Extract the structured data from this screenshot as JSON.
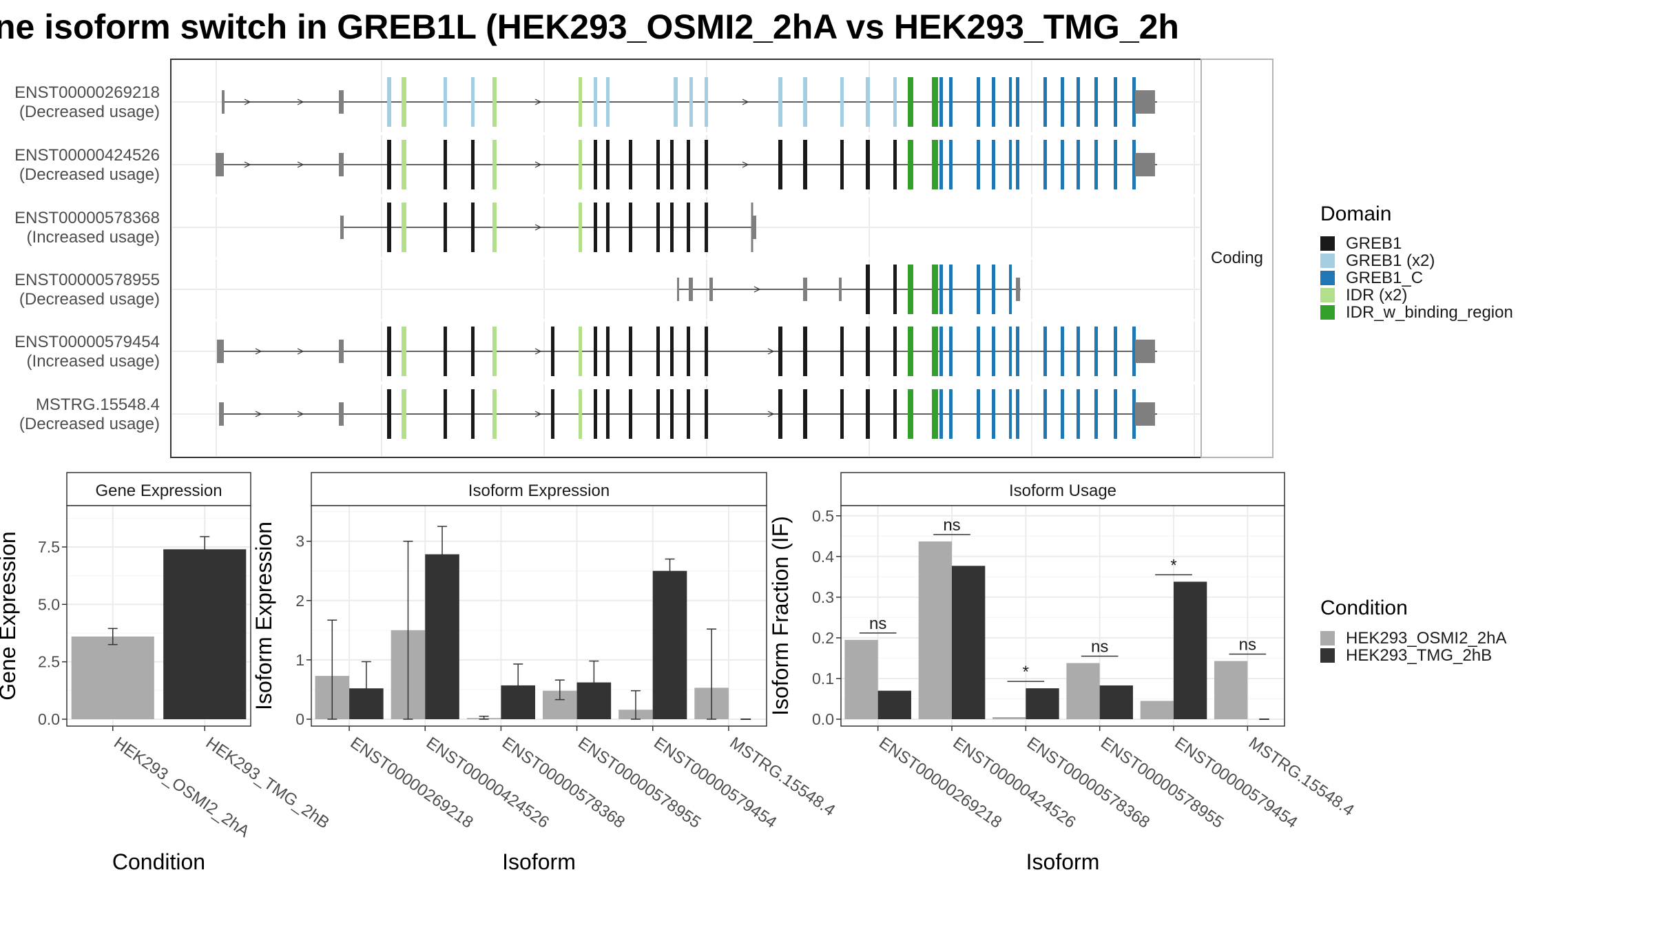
{
  "title": "ne isoform switch in GREB1L (HEK293_OSMI2_2hA vs HEK293_TMG_2h",
  "structure_panel": {
    "strip_label": "Coding",
    "transcripts": [
      {
        "id": "ENST00000269218",
        "usage": "(Decreased usage)",
        "coding": "GREB1 (x2)"
      },
      {
        "id": "ENST00000424526",
        "usage": "(Decreased usage)",
        "coding": "GREB1"
      },
      {
        "id": "ENST00000578368",
        "usage": "(Increased usage)",
        "coding": "GREB1"
      },
      {
        "id": "ENST00000578955",
        "usage": "(Decreased usage)",
        "coding": "GREB1"
      },
      {
        "id": "ENST00000579454",
        "usage": "(Increased usage)",
        "coding": "GREB1"
      },
      {
        "id": "MSTRG.15548.4",
        "usage": "(Decreased usage)",
        "coding": "GREB1"
      }
    ]
  },
  "legend_domain": {
    "title": "Domain",
    "items": [
      {
        "label": "GREB1",
        "color": "#1a1a1a"
      },
      {
        "label": "GREB1 (x2)",
        "color": "#a6cee3"
      },
      {
        "label": "GREB1_C",
        "color": "#1f78b4"
      },
      {
        "label": "IDR (x2)",
        "color": "#b2df8a"
      },
      {
        "label": "IDR_w_binding_region",
        "color": "#33a02c"
      }
    ]
  },
  "legend_condition": {
    "title": "Condition",
    "items": [
      {
        "label": "HEK293_OSMI2_2hA",
        "color": "#ababab"
      },
      {
        "label": "HEK293_TMG_2hB",
        "color": "#333333"
      }
    ]
  },
  "chart_data": [
    {
      "type": "bar",
      "title": "Gene Expression",
      "xlabel": "Condition",
      "ylabel": "Gene Expression",
      "ylim": [
        0,
        9.3
      ],
      "yticks": [
        0.0,
        2.5,
        5.0,
        7.5
      ],
      "ytick_labels": [
        "0.0",
        "2.5",
        "5.0",
        "7.5"
      ],
      "categories": [
        "HEK293_OSMI2_2hA",
        "HEK293_TMG_2hB"
      ],
      "values": [
        3.6,
        7.4
      ],
      "error_low": [
        3.25,
        6.85
      ],
      "error_high": [
        3.95,
        7.95
      ],
      "colors": [
        "#ababab",
        "#333333"
      ],
      "grid": true
    },
    {
      "type": "bar",
      "title": "Isoform Expression",
      "xlabel": "Isoform",
      "ylabel": "Isoform Expression",
      "ylim": [
        0,
        3.6
      ],
      "yticks": [
        0,
        1,
        2,
        3
      ],
      "ytick_labels": [
        "0",
        "1",
        "2",
        "3"
      ],
      "categories": [
        "ENST00000269218",
        "ENST00000424526",
        "ENST00000578368",
        "ENST00000578955",
        "ENST00000579454",
        "MSTRG.15548.4"
      ],
      "series": [
        {
          "name": "HEK293_OSMI2_2hA",
          "color": "#ababab",
          "values": [
            0.73,
            1.5,
            0.02,
            0.48,
            0.16,
            0.53
          ],
          "error_low": [
            0.0,
            0.0,
            0.0,
            0.33,
            0.0,
            0.0
          ],
          "error_high": [
            1.67,
            3.0,
            0.05,
            0.66,
            0.48,
            1.52
          ]
        },
        {
          "name": "HEK293_TMG_2hB",
          "color": "#333333",
          "values": [
            0.52,
            2.78,
            0.57,
            0.62,
            2.5,
            0.0
          ],
          "error_low": [
            0.05,
            2.3,
            0.2,
            0.25,
            2.3,
            0.0
          ],
          "error_high": [
            0.97,
            3.25,
            0.93,
            0.98,
            2.7,
            0.0
          ]
        }
      ],
      "grid": true
    },
    {
      "type": "bar",
      "title": "Isoform Usage",
      "xlabel": "Isoform",
      "ylabel": "Isoform Fraction (IF)",
      "ylim": [
        0,
        0.525
      ],
      "yticks": [
        0.0,
        0.1,
        0.2,
        0.3,
        0.4,
        0.5
      ],
      "ytick_labels": [
        "0.0",
        "0.1",
        "0.2",
        "0.3",
        "0.4",
        "0.5"
      ],
      "categories": [
        "ENST00000269218",
        "ENST00000424526",
        "ENST00000578368",
        "ENST00000578955",
        "ENST00000579454",
        "MSTRG.15548.4"
      ],
      "series": [
        {
          "name": "HEK293_OSMI2_2hA",
          "color": "#ababab",
          "values": [
            0.195,
            0.437,
            0.005,
            0.138,
            0.045,
            0.143
          ]
        },
        {
          "name": "HEK293_TMG_2hB",
          "color": "#333333",
          "values": [
            0.07,
            0.377,
            0.076,
            0.083,
            0.338,
            0.0
          ]
        }
      ],
      "significance": [
        "ns",
        "ns",
        "*",
        "ns",
        "*",
        "ns"
      ],
      "grid": true
    }
  ]
}
